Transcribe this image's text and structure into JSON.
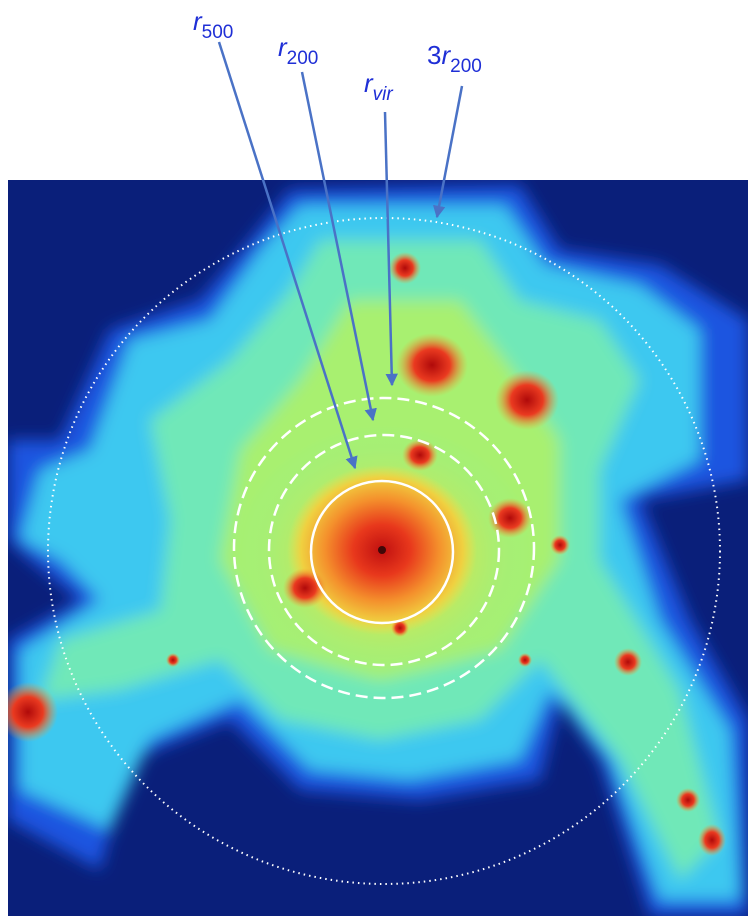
{
  "labels": [
    {
      "main": "r",
      "sub": "500"
    },
    {
      "main": "r",
      "sub": "200"
    },
    {
      "main": "r",
      "sub": "vir"
    },
    {
      "prefix": "3",
      "main": "r",
      "sub": "200"
    }
  ]
}
